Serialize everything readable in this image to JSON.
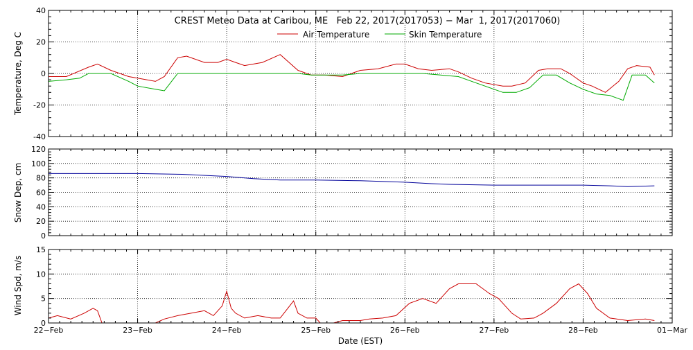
{
  "title": "CREST Meteo Data at Caribou, ME   Feb 22, 2017(2017053) − Mar  1, 2017(2017060)",
  "xlabel": "Date (EST)",
  "x_ticks": [
    "22−Feb",
    "23−Feb",
    "24−Feb",
    "25−Feb",
    "26−Feb",
    "27−Feb",
    "28−Feb",
    "01−Mar"
  ],
  "colors": {
    "air": "#cc0000",
    "skin": "#00aa00",
    "snow": "#000099",
    "wind": "#cc0000"
  },
  "chart_data": [
    {
      "type": "line",
      "ylabel": "Temperature, Deg C",
      "ylim": [
        -40,
        40
      ],
      "y_ticks": [
        -40,
        -20,
        0,
        20,
        40
      ],
      "x_unit": "day of Feb 2017",
      "xlim": [
        22,
        29
      ],
      "grid": true,
      "legend": "top-center",
      "series": [
        {
          "name": "Air Temperature",
          "color": "#cc0000",
          "x": [
            22.0,
            22.2,
            22.45,
            22.55,
            22.7,
            22.9,
            23.0,
            23.2,
            23.3,
            23.45,
            23.55,
            23.75,
            23.9,
            24.0,
            24.1,
            24.2,
            24.4,
            24.6,
            24.8,
            24.95,
            25.1,
            25.3,
            25.5,
            25.7,
            25.9,
            26.0,
            26.15,
            26.3,
            26.5,
            26.6,
            26.75,
            26.9,
            27.1,
            27.2,
            27.35,
            27.5,
            27.6,
            27.75,
            27.85,
            28.0,
            28.1,
            28.25,
            28.4,
            28.5,
            28.6,
            28.75,
            28.8
          ],
          "values": [
            -2,
            -2,
            4,
            6,
            2,
            -2,
            -3,
            -5,
            -2,
            10,
            11,
            7,
            7,
            9,
            7,
            5,
            7,
            12,
            2,
            -1,
            -1,
            -2,
            2,
            3,
            6,
            6,
            3,
            2,
            3,
            1,
            -3,
            -6,
            -8,
            -8,
            -6,
            2,
            3,
            3,
            0,
            -6,
            -8,
            -12,
            -5,
            3,
            5,
            4,
            -1
          ]
        },
        {
          "name": "Skin Temperature",
          "color": "#00aa00",
          "x": [
            22.0,
            22.2,
            22.35,
            22.45,
            22.55,
            22.7,
            22.9,
            23.0,
            23.2,
            23.3,
            23.45,
            23.6,
            23.8,
            24.0,
            24.2,
            24.4,
            24.6,
            24.8,
            24.95,
            25.1,
            25.3,
            25.5,
            25.7,
            25.9,
            26.0,
            26.2,
            26.4,
            26.6,
            26.8,
            27.0,
            27.1,
            27.25,
            27.4,
            27.55,
            27.7,
            27.85,
            28.0,
            28.15,
            28.3,
            28.45,
            28.55,
            28.7,
            28.8
          ],
          "values": [
            -5,
            -4,
            -3,
            0,
            0,
            0,
            -5,
            -8,
            -10,
            -11,
            0,
            0,
            0,
            0,
            0,
            0,
            0,
            0,
            -1,
            -1,
            -1,
            0,
            0,
            0,
            0,
            0,
            -1,
            -2,
            -6,
            -10,
            -12,
            -12,
            -9,
            -1,
            -1,
            -6,
            -10,
            -13,
            -14,
            -17,
            -1,
            -1,
            -6
          ]
        }
      ]
    },
    {
      "type": "line",
      "ylabel": "Snow Dep, cm",
      "ylim": [
        0,
        120
      ],
      "y_ticks": [
        0,
        20,
        40,
        60,
        80,
        100,
        120
      ],
      "grid": true,
      "series": [
        {
          "color": "#000099",
          "x": [
            22.0,
            22.5,
            23.0,
            23.5,
            24.0,
            24.3,
            24.6,
            25.0,
            25.5,
            26.0,
            26.3,
            26.5,
            27.0,
            27.5,
            28.0,
            28.3,
            28.5,
            28.8
          ],
          "values": [
            86,
            86,
            86,
            85,
            82,
            79,
            77,
            77,
            76,
            74,
            72,
            71,
            70,
            70,
            70,
            69,
            68,
            69
          ]
        }
      ]
    },
    {
      "type": "line",
      "ylabel": "Wind Spd, m/s",
      "ylim": [
        0,
        15
      ],
      "y_ticks": [
        0,
        5,
        10,
        15
      ],
      "grid": true,
      "series": [
        {
          "color": "#cc0000",
          "x": [
            22.0,
            22.1,
            22.25,
            22.4,
            22.5,
            22.55,
            22.6,
            22.7,
            22.9,
            23.0,
            23.2,
            23.3,
            23.45,
            23.6,
            23.75,
            23.85,
            23.95,
            24.0,
            24.05,
            24.1,
            24.2,
            24.35,
            24.5,
            24.6,
            24.75,
            24.8,
            24.9,
            25.0,
            25.05,
            25.2,
            25.3,
            25.5,
            25.6,
            25.75,
            25.9,
            26.05,
            26.2,
            26.35,
            26.5,
            26.6,
            26.8,
            26.95,
            27.05,
            27.2,
            27.3,
            27.45,
            27.55,
            27.7,
            27.85,
            27.95,
            28.05,
            28.15,
            28.3,
            28.5,
            28.7,
            28.8
          ],
          "values": [
            1,
            1.5,
            0.8,
            2,
            3,
            2.5,
            0,
            0,
            0,
            0,
            0,
            0.8,
            1.5,
            2,
            2.5,
            1.5,
            3.5,
            6.5,
            3,
            2,
            1,
            1.5,
            1,
            1,
            4.5,
            2,
            1,
            1,
            0,
            0,
            0.5,
            0.5,
            0.8,
            1,
            1.5,
            4,
            5,
            4,
            7,
            8,
            8,
            6,
            5,
            2,
            0.8,
            1,
            2,
            4,
            7,
            8,
            6,
            3,
            1,
            0.5,
            0.8,
            0.5
          ]
        }
      ]
    }
  ]
}
